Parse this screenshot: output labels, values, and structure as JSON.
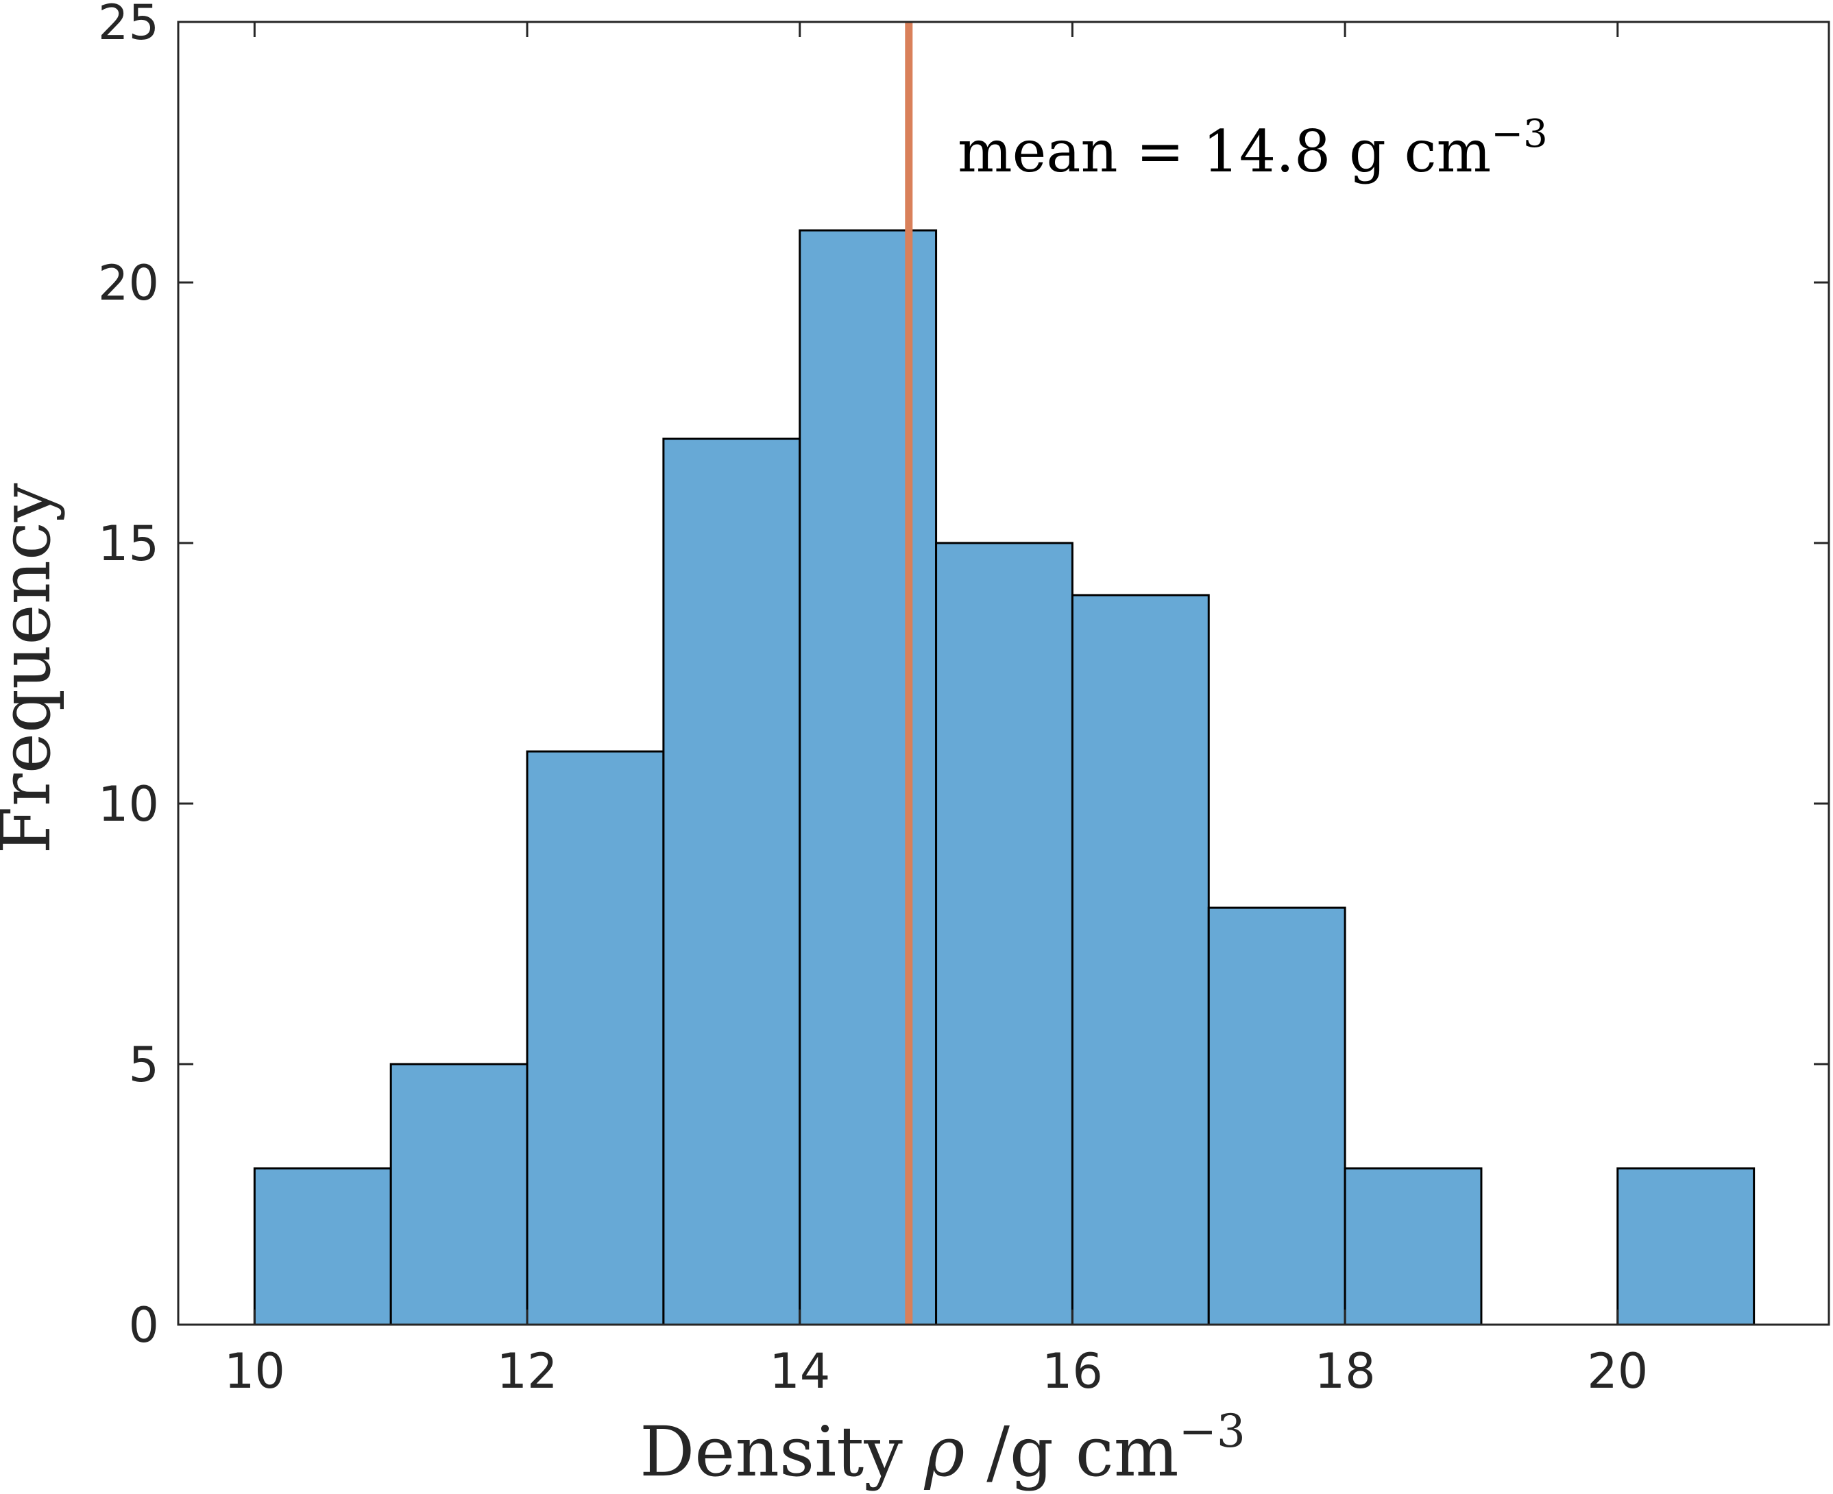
{
  "chart_data": {
    "type": "bar",
    "subtype": "histogram",
    "bin_edges": [
      10,
      11,
      12,
      13,
      14,
      15,
      16,
      17,
      18,
      19,
      20,
      21
    ],
    "values": [
      3,
      5,
      11,
      17,
      21,
      15,
      14,
      8,
      3,
      0,
      3
    ],
    "xlim": [
      9.44,
      21.55
    ],
    "ylim": [
      0,
      25
    ],
    "xticks": [
      "10",
      "12",
      "14",
      "16",
      "18",
      "20"
    ],
    "xtick_values": [
      10,
      12,
      14,
      16,
      18,
      20
    ],
    "yticks": [
      "0",
      "5",
      "10",
      "15",
      "20",
      "25"
    ],
    "ytick_values": [
      0,
      5,
      10,
      15,
      20,
      25
    ],
    "xlabel": {
      "prefix": "Density ",
      "symbol": "ρ",
      "unit": " /g cm",
      "exponent": "−3"
    },
    "ylabel": "Frequency",
    "mean_line": {
      "value": 14.8,
      "label": "mean = 14.8 g cm",
      "label_exponent": "−3"
    },
    "colors": {
      "bar_fill": "#67a9d6",
      "bar_edge": "#000000",
      "mean_line": "#d9805a",
      "axis": "#262626"
    }
  }
}
